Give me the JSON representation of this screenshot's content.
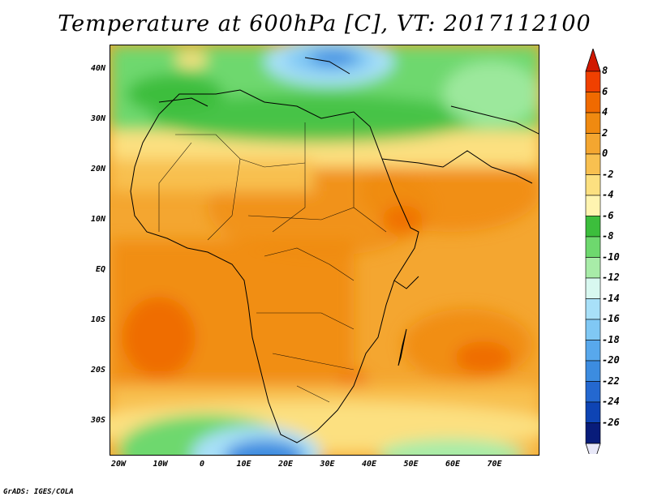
{
  "title": "Temperature at 600hPa [C], VT: 2017112100",
  "credit": "GrADS: IGES/COLA",
  "lat_labels": [
    "40N",
    "30N",
    "20N",
    "10N",
    "EQ",
    "10S",
    "20S",
    "30S"
  ],
  "lon_labels": [
    "20W",
    "10W",
    "0",
    "10E",
    "20E",
    "30E",
    "40E",
    "50E",
    "60E",
    "70E"
  ],
  "colorbar": {
    "labels": [
      "8",
      "6",
      "4",
      "2",
      "0",
      "-2",
      "-4",
      "-6",
      "-8",
      "-10",
      "-12",
      "-14",
      "-16",
      "-18",
      "-20",
      "-22",
      "-24",
      "-26"
    ],
    "colors": [
      "#f04000",
      "#f06a00",
      "#f08a10",
      "#f4a630",
      "#f8c050",
      "#fce080",
      "#fff4b0",
      "#3cbe3c",
      "#6ed86e",
      "#a8eca8",
      "#d8f8f0",
      "#a8e0f8",
      "#80c8f4",
      "#58a8ec",
      "#3c8ce0",
      "#2468d0",
      "#0e44b4",
      "#081c7a"
    ],
    "over_color": "#d01800",
    "under_color": "#e8e8f8"
  }
}
